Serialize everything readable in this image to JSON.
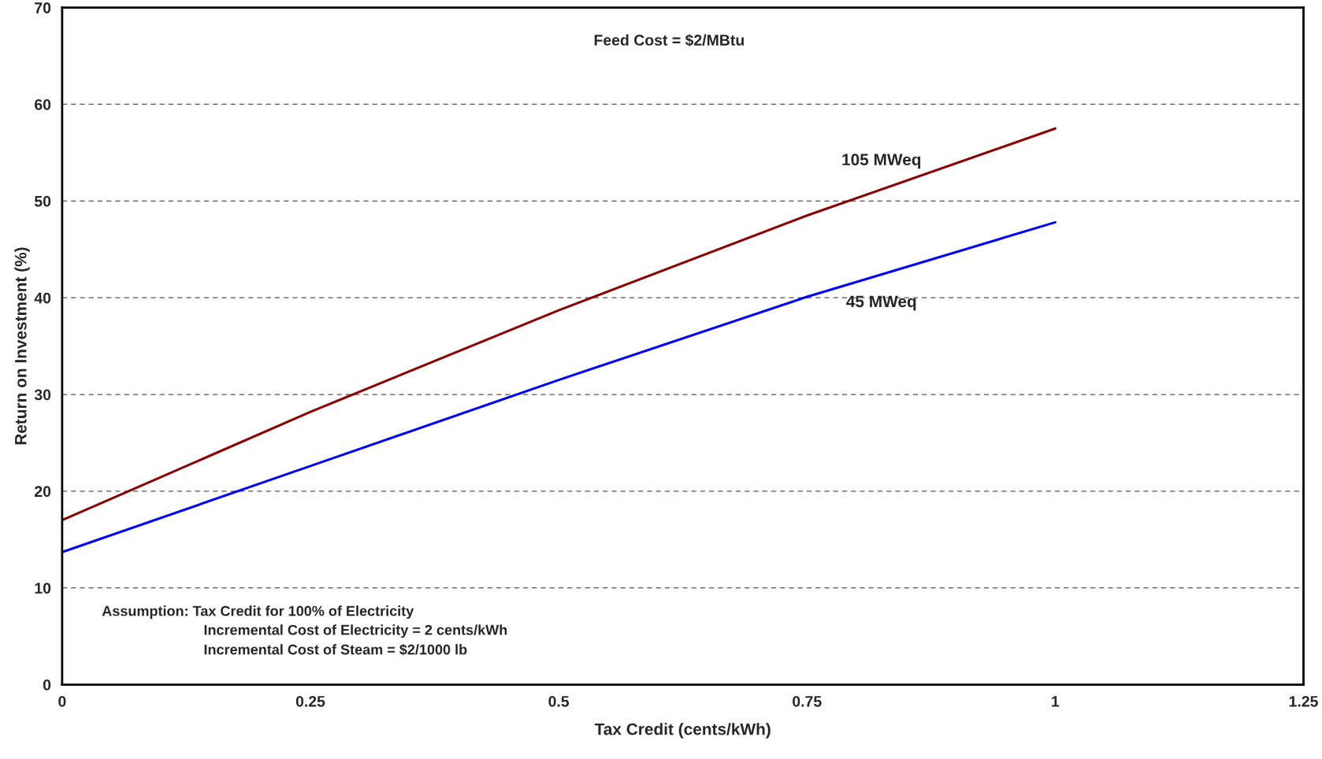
{
  "chart_data": {
    "type": "line",
    "xlabel": "Tax Credit (cents/kWh)",
    "ylabel": "Return on Investment (%)",
    "x": [
      0,
      0.25,
      0.5,
      0.75,
      1
    ],
    "series": [
      {
        "name": "105 MWeq",
        "color": "#8b0000",
        "values": [
          17,
          28.2,
          38.7,
          48.5,
          57.5
        ]
      },
      {
        "name": "45 MWeq",
        "color": "#0000ff",
        "values": [
          13.7,
          22.6,
          31.5,
          40.1,
          47.8
        ]
      }
    ],
    "xlim": [
      0,
      1.25
    ],
    "xticks": [
      0,
      0.25,
      0.5,
      0.75,
      1,
      1.25
    ],
    "ylim": [
      0,
      70
    ],
    "yticks": [
      0,
      10,
      20,
      30,
      40,
      50,
      60,
      70
    ],
    "grid": "y",
    "line_style": "solid",
    "annotations": [
      "Feed Cost = $2/MBtu",
      "Assumption: Tax Credit for 100% of Electricity",
      "Incremental Cost of Electricity = 2 cents/kWh",
      "Incremental Cost of Steam = $2/1000 lb"
    ]
  }
}
